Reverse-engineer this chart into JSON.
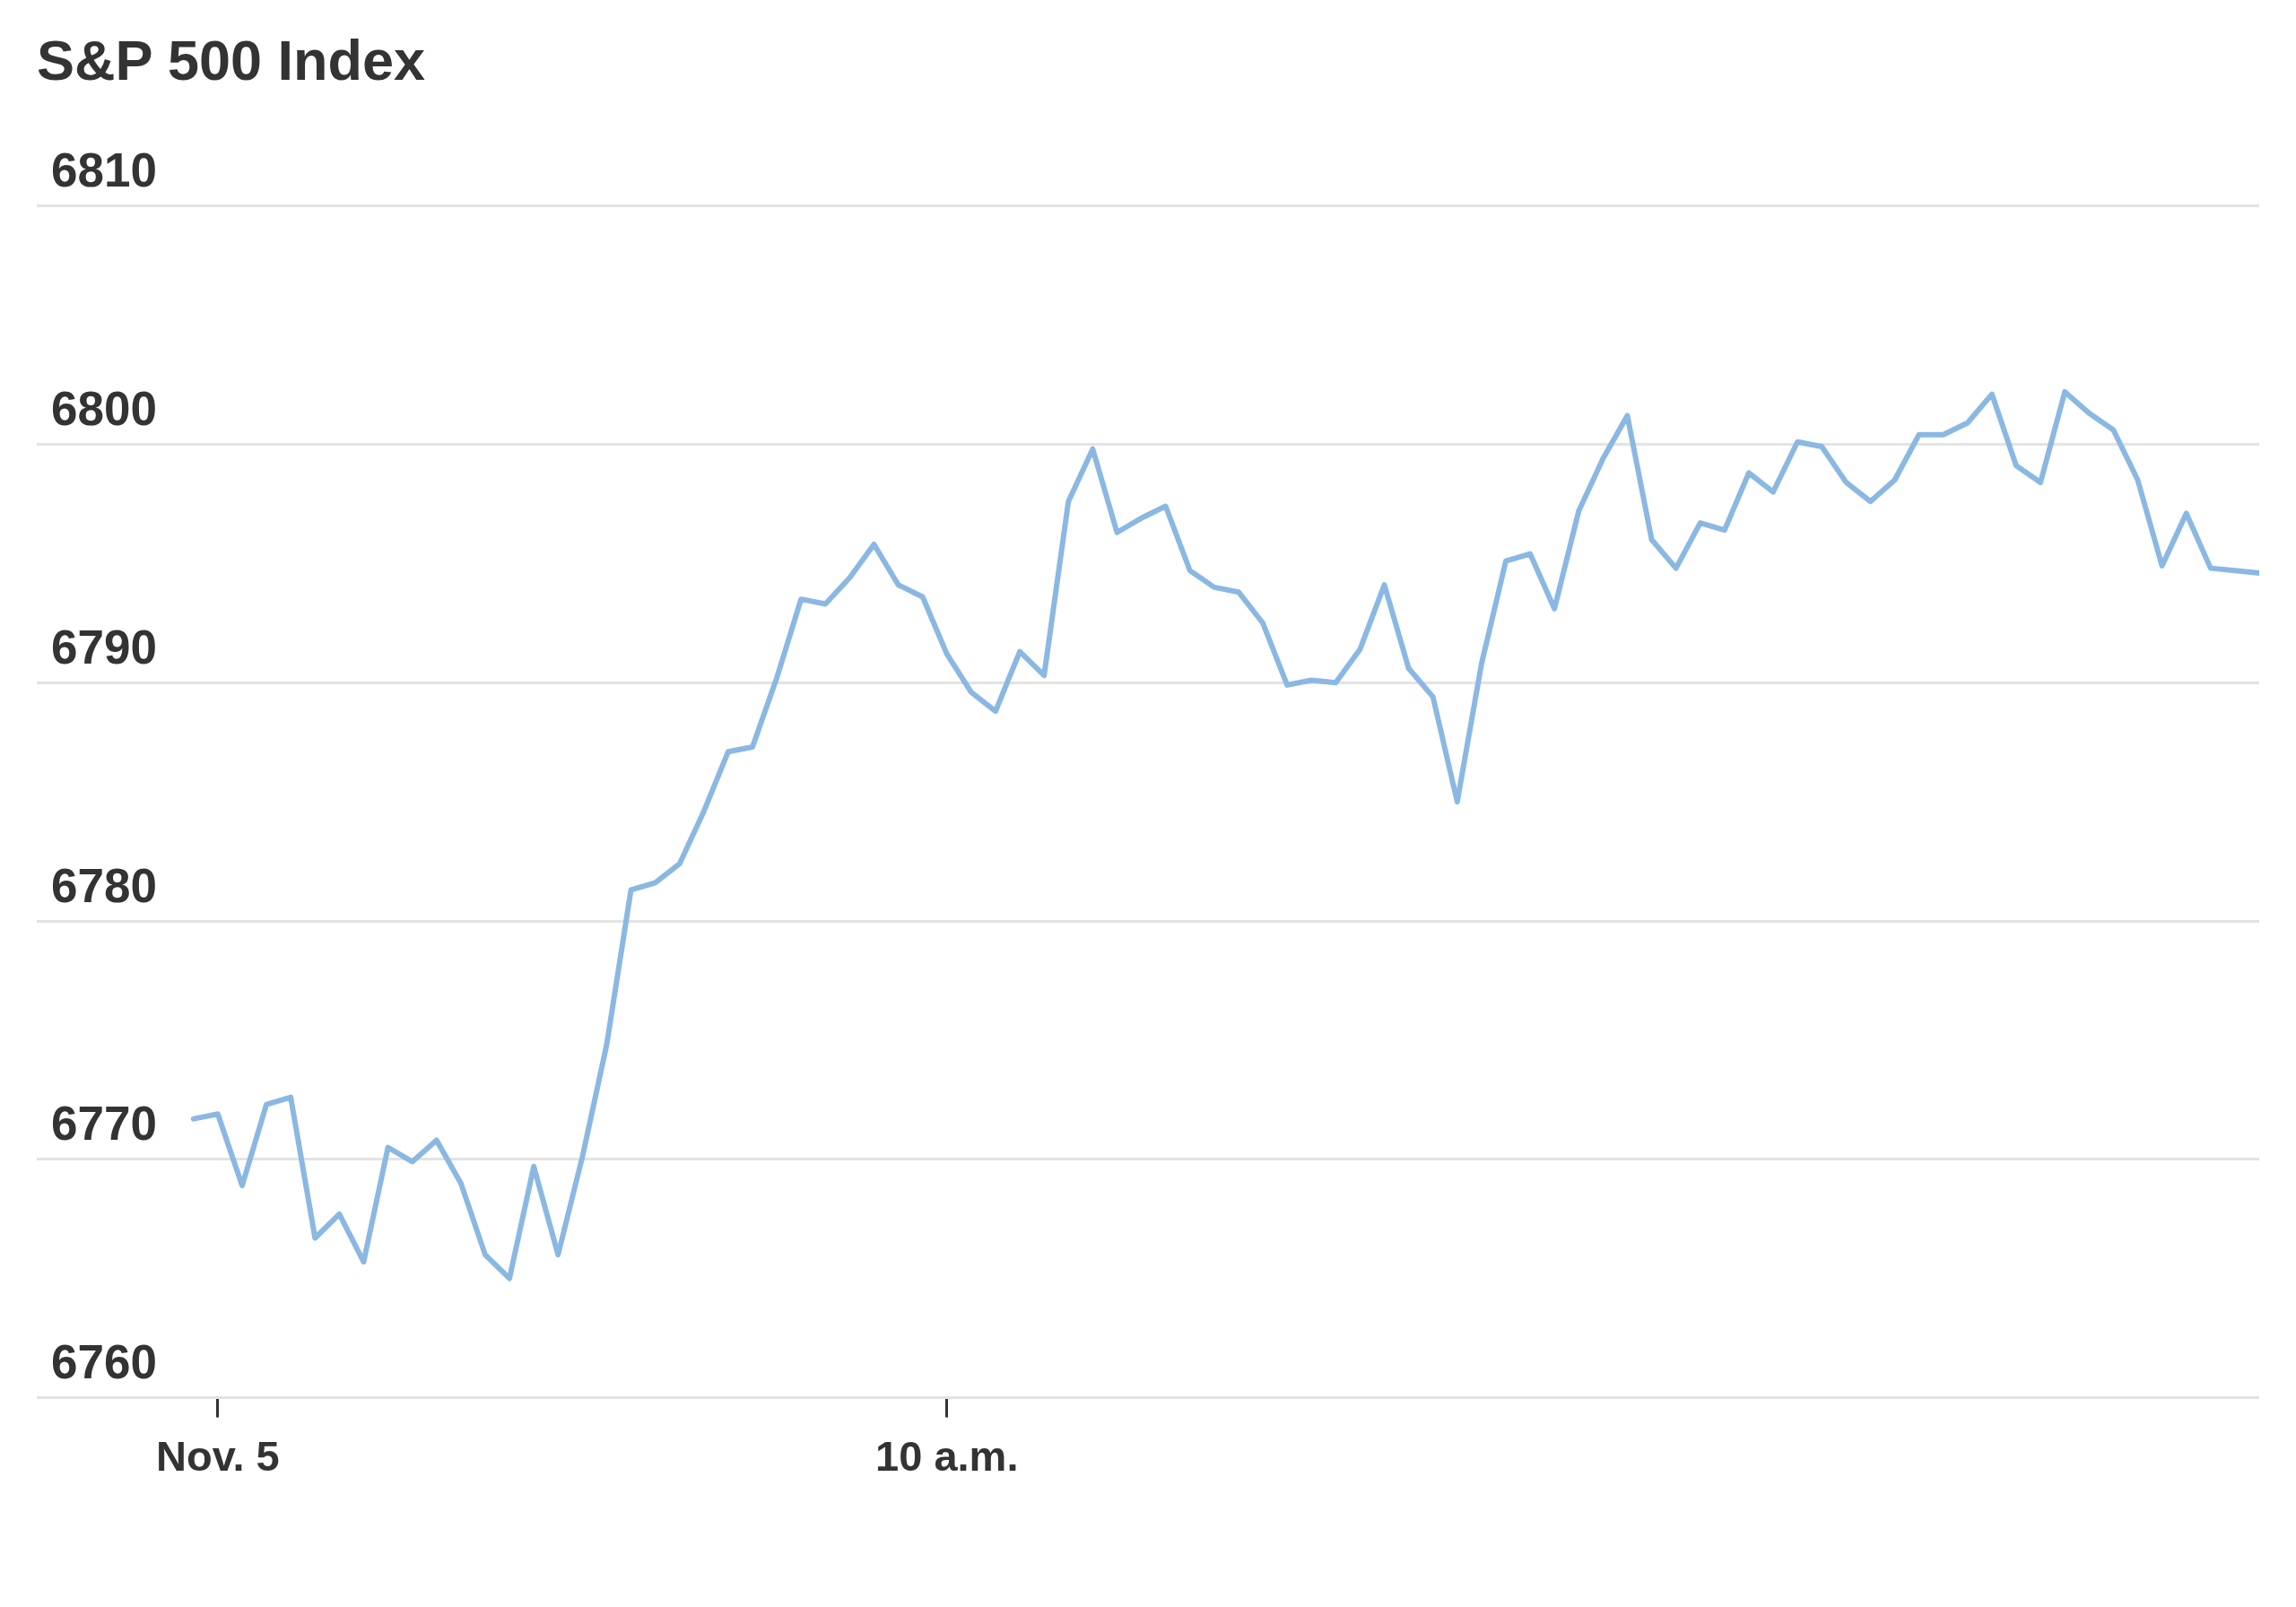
{
  "chart_data": {
    "type": "line",
    "title": "S&P 500 Index",
    "categories": [
      null,
      "Nov. 5",
      null,
      null,
      null,
      null,
      null,
      null,
      null,
      null,
      null,
      null,
      null,
      null,
      null,
      null,
      null,
      null,
      null,
      null,
      null,
      null,
      null,
      null,
      null,
      null,
      null,
      null,
      null,
      null,
      null,
      "10 a.m.",
      null,
      null,
      null,
      null,
      null,
      null,
      null,
      null,
      null,
      null,
      null,
      null,
      null,
      null,
      null,
      null,
      null,
      null,
      null,
      null,
      null,
      null,
      null,
      null,
      null,
      null,
      null,
      null,
      null,
      null,
      null,
      null,
      null,
      null,
      null,
      null,
      null,
      null,
      null,
      null,
      null,
      null,
      null,
      null,
      null,
      null,
      null,
      null,
      null,
      null,
      null,
      null,
      null,
      null
    ],
    "series": [
      {
        "color": "#8ab8e2",
        "values": [
          6771.7,
          6771.9,
          6768.9,
          6772.3,
          6772.6,
          6766.7,
          6767.7,
          6765.7,
          6770.5,
          6769.9,
          6770.8,
          6769.0,
          6766.0,
          6765.0,
          6769.7,
          6766.0,
          6770.1,
          6774.8,
          6781.3,
          6781.6,
          6782.4,
          6784.6,
          6787.1,
          6787.3,
          6790.2,
          6793.5,
          6793.3,
          6794.4,
          6795.8,
          6794.1,
          6793.6,
          6791.2,
          6789.6,
          6788.8,
          6791.3,
          6790.3,
          6797.6,
          6799.8,
          6796.3,
          6796.9,
          6797.4,
          6794.7,
          6794.0,
          6793.8,
          6792.5,
          6789.9,
          6790.1,
          6790.0,
          6791.4,
          6794.1,
          6790.6,
          6789.4,
          6785.0,
          6790.8,
          6795.1,
          6795.4,
          6793.1,
          6797.2,
          6799.4,
          6801.2,
          6796.0,
          6794.8,
          6796.7,
          6796.4,
          6798.8,
          6798.0,
          6800.1,
          6799.9,
          6798.4,
          6797.6,
          6798.5,
          6800.4,
          6800.4,
          6800.9,
          6802.1,
          6799.1,
          6798.4,
          6802.2,
          6801.3,
          6800.6,
          6798.5,
          6794.9,
          6797.1,
          6794.8,
          6794.7,
          6794.6
        ]
      }
    ],
    "ylim": [
      6760,
      6810
    ],
    "yticks": [
      6760,
      6770,
      6780,
      6790,
      6800,
      6810
    ],
    "grid": "y",
    "marker": "none",
    "line_style": "solid"
  }
}
